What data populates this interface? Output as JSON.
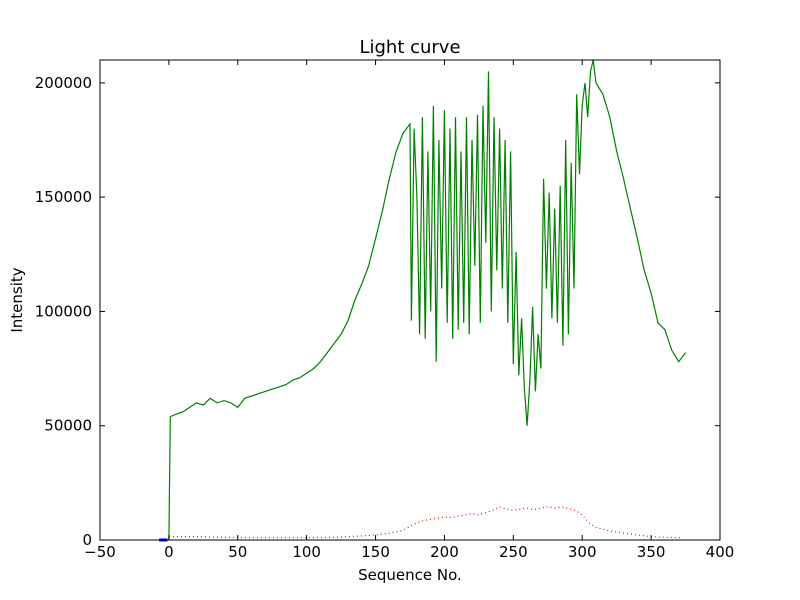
{
  "chart_data": {
    "type": "line",
    "title": "Light curve",
    "xlabel": "Sequence No.",
    "ylabel": "Intensity",
    "xlim": [
      -50,
      400
    ],
    "ylim": [
      0,
      210000
    ],
    "grid": false,
    "xticks": [
      -50,
      0,
      50,
      100,
      150,
      200,
      250,
      300,
      350,
      400
    ],
    "yticks": [
      0,
      50000,
      100000,
      150000,
      200000
    ],
    "xtick_labels": [
      "−50",
      "0",
      "50",
      "100",
      "150",
      "200",
      "250",
      "300",
      "350",
      "400"
    ],
    "ytick_labels": [
      "0",
      "50000",
      "100000",
      "150000",
      "200000"
    ],
    "series": [
      {
        "color": "#008000",
        "style": "solid",
        "x": [
          0,
          1,
          5,
          10,
          15,
          20,
          25,
          30,
          35,
          40,
          45,
          50,
          55,
          60,
          65,
          70,
          75,
          80,
          85,
          90,
          95,
          100,
          105,
          110,
          115,
          120,
          125,
          130,
          135,
          140,
          145,
          150,
          155,
          160,
          165,
          170,
          175,
          176,
          178,
          180,
          182,
          184,
          186,
          188,
          190,
          192,
          194,
          196,
          198,
          200,
          202,
          204,
          206,
          208,
          210,
          212,
          214,
          216,
          218,
          220,
          222,
          224,
          226,
          228,
          230,
          232,
          234,
          236,
          238,
          240,
          242,
          244,
          246,
          248,
          250,
          252,
          254,
          256,
          258,
          260,
          262,
          264,
          266,
          268,
          270,
          272,
          274,
          276,
          278,
          280,
          282,
          284,
          286,
          288,
          290,
          292,
          294,
          296,
          298,
          300,
          302,
          304,
          306,
          308,
          310,
          315,
          320,
          325,
          330,
          335,
          340,
          345,
          350,
          355,
          360,
          365,
          370,
          375
        ],
        "y": [
          0,
          54000,
          55000,
          56000,
          58000,
          60000,
          59000,
          62000,
          60000,
          61000,
          60000,
          58000,
          62000,
          63000,
          64000,
          65000,
          66000,
          67000,
          68000,
          70000,
          71000,
          73000,
          75000,
          78000,
          82000,
          86000,
          90000,
          96000,
          105000,
          112000,
          120000,
          132000,
          144000,
          158000,
          170000,
          178000,
          182000,
          96000,
          180000,
          150000,
          90000,
          185000,
          88000,
          170000,
          100000,
          190000,
          78000,
          175000,
          110000,
          188000,
          95000,
          180000,
          88000,
          185000,
          92000,
          170000,
          95000,
          185000,
          90000,
          175000,
          120000,
          186000,
          95000,
          190000,
          130000,
          205000,
          100000,
          185000,
          118000,
          180000,
          110000,
          175000,
          95000,
          170000,
          77000,
          126000,
          72000,
          97000,
          66000,
          50000,
          70000,
          102000,
          65000,
          90000,
          75000,
          158000,
          110000,
          152000,
          97000,
          145000,
          95000,
          155000,
          85000,
          175000,
          90000,
          165000,
          110000,
          195000,
          160000,
          190000,
          200000,
          185000,
          205000,
          210000,
          200000,
          195000,
          185000,
          170000,
          158000,
          145000,
          132000,
          118000,
          108000,
          95000,
          92000,
          83000,
          78000,
          82000
        ]
      },
      {
        "color": "#ff0000",
        "style": "dotted",
        "x": [
          0,
          20,
          40,
          60,
          80,
          100,
          120,
          140,
          150,
          160,
          170,
          175,
          180,
          185,
          190,
          195,
          200,
          205,
          210,
          215,
          220,
          225,
          230,
          235,
          240,
          245,
          250,
          255,
          260,
          265,
          270,
          275,
          280,
          285,
          290,
          295,
          300,
          305,
          310,
          320,
          330,
          340,
          350,
          360,
          372
        ],
        "y": [
          1500,
          1500,
          1200,
          1000,
          1000,
          1000,
          1200,
          1800,
          2200,
          3000,
          4200,
          6000,
          7500,
          8500,
          9000,
          9500,
          10000,
          9800,
          10500,
          11000,
          11500,
          11000,
          12000,
          13000,
          14500,
          13500,
          13000,
          13500,
          14000,
          13200,
          14000,
          14500,
          14000,
          14500,
          13800,
          13000,
          11000,
          7500,
          5500,
          4000,
          3000,
          2200,
          1500,
          1200,
          1000
        ]
      },
      {
        "color": "#0000ff",
        "style": "solid",
        "x": [
          -7,
          -1
        ],
        "y": [
          0,
          0
        ]
      }
    ]
  }
}
